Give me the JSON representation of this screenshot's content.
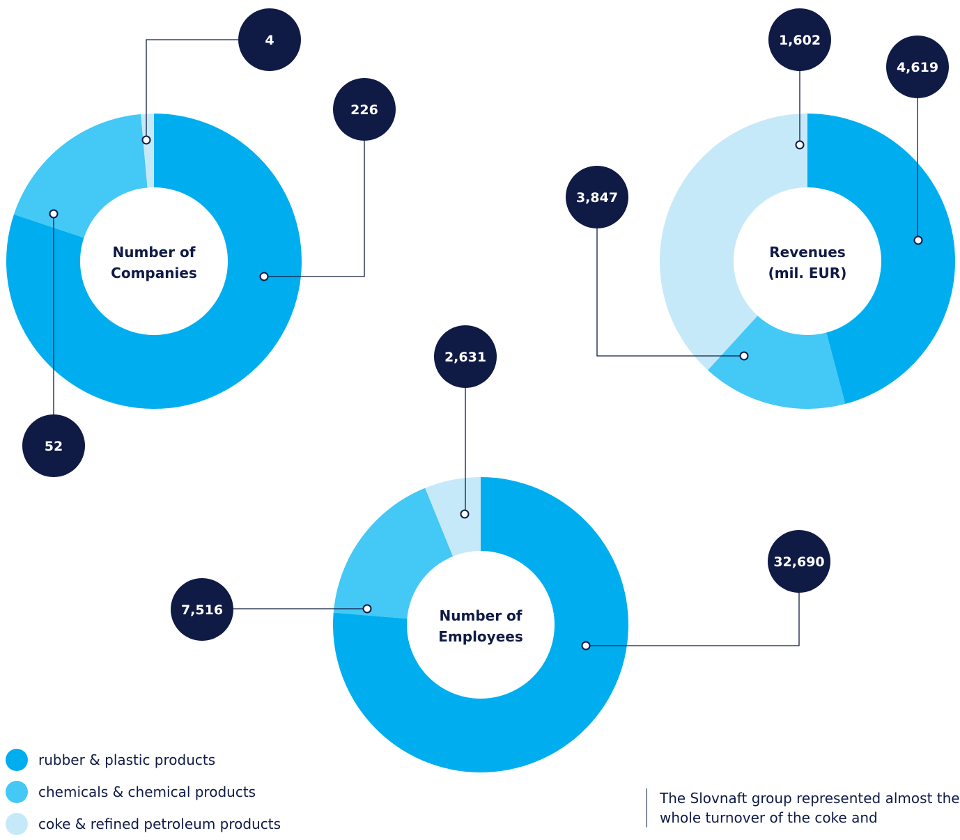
{
  "chart_data": [
    {
      "type": "pie",
      "title": "Number of Companies",
      "categories": [
        "rubber & plastic products",
        "chemicals & chemical products",
        "coke & refined petroleum products"
      ],
      "values": [
        226,
        52,
        4
      ]
    },
    {
      "type": "pie",
      "title": "Revenues (mil. EUR)",
      "categories": [
        "rubber & plastic products",
        "chemicals & chemical products",
        "coke & refined petroleum products"
      ],
      "values": [
        4619,
        1602,
        3847
      ]
    },
    {
      "type": "pie",
      "title": "Number of Employees",
      "categories": [
        "rubber & plastic products",
        "chemicals & chemical products",
        "coke & refined petroleum products"
      ],
      "values": [
        32690,
        7516,
        2631
      ]
    }
  ],
  "charts_text": {
    "companies": {
      "title_line1": "Number of",
      "title_line2": "Companies",
      "labels": [
        "226",
        "52",
        "4"
      ]
    },
    "revenues": {
      "title_line1": "Revenues",
      "title_line2": "(mil. EUR)",
      "labels": [
        "4,619",
        "1,602",
        "3,847"
      ]
    },
    "employees": {
      "title_line1": "Number of",
      "title_line2": "Employees",
      "labels": [
        "32,690",
        "7,516",
        "2,631"
      ]
    }
  },
  "legend": [
    {
      "label": "rubber & plastic products",
      "color": "#00aeef"
    },
    {
      "label": "chemicals & chemical products",
      "color": "#44c8f5"
    },
    {
      "label": "coke & refined petroleum products",
      "color": "#c6e9f9"
    }
  ],
  "colors": {
    "badge": "#0f1a45",
    "leader": "#0f1a45"
  },
  "note": "The Slovnaft group represented almost the whole turnover of the coke and"
}
